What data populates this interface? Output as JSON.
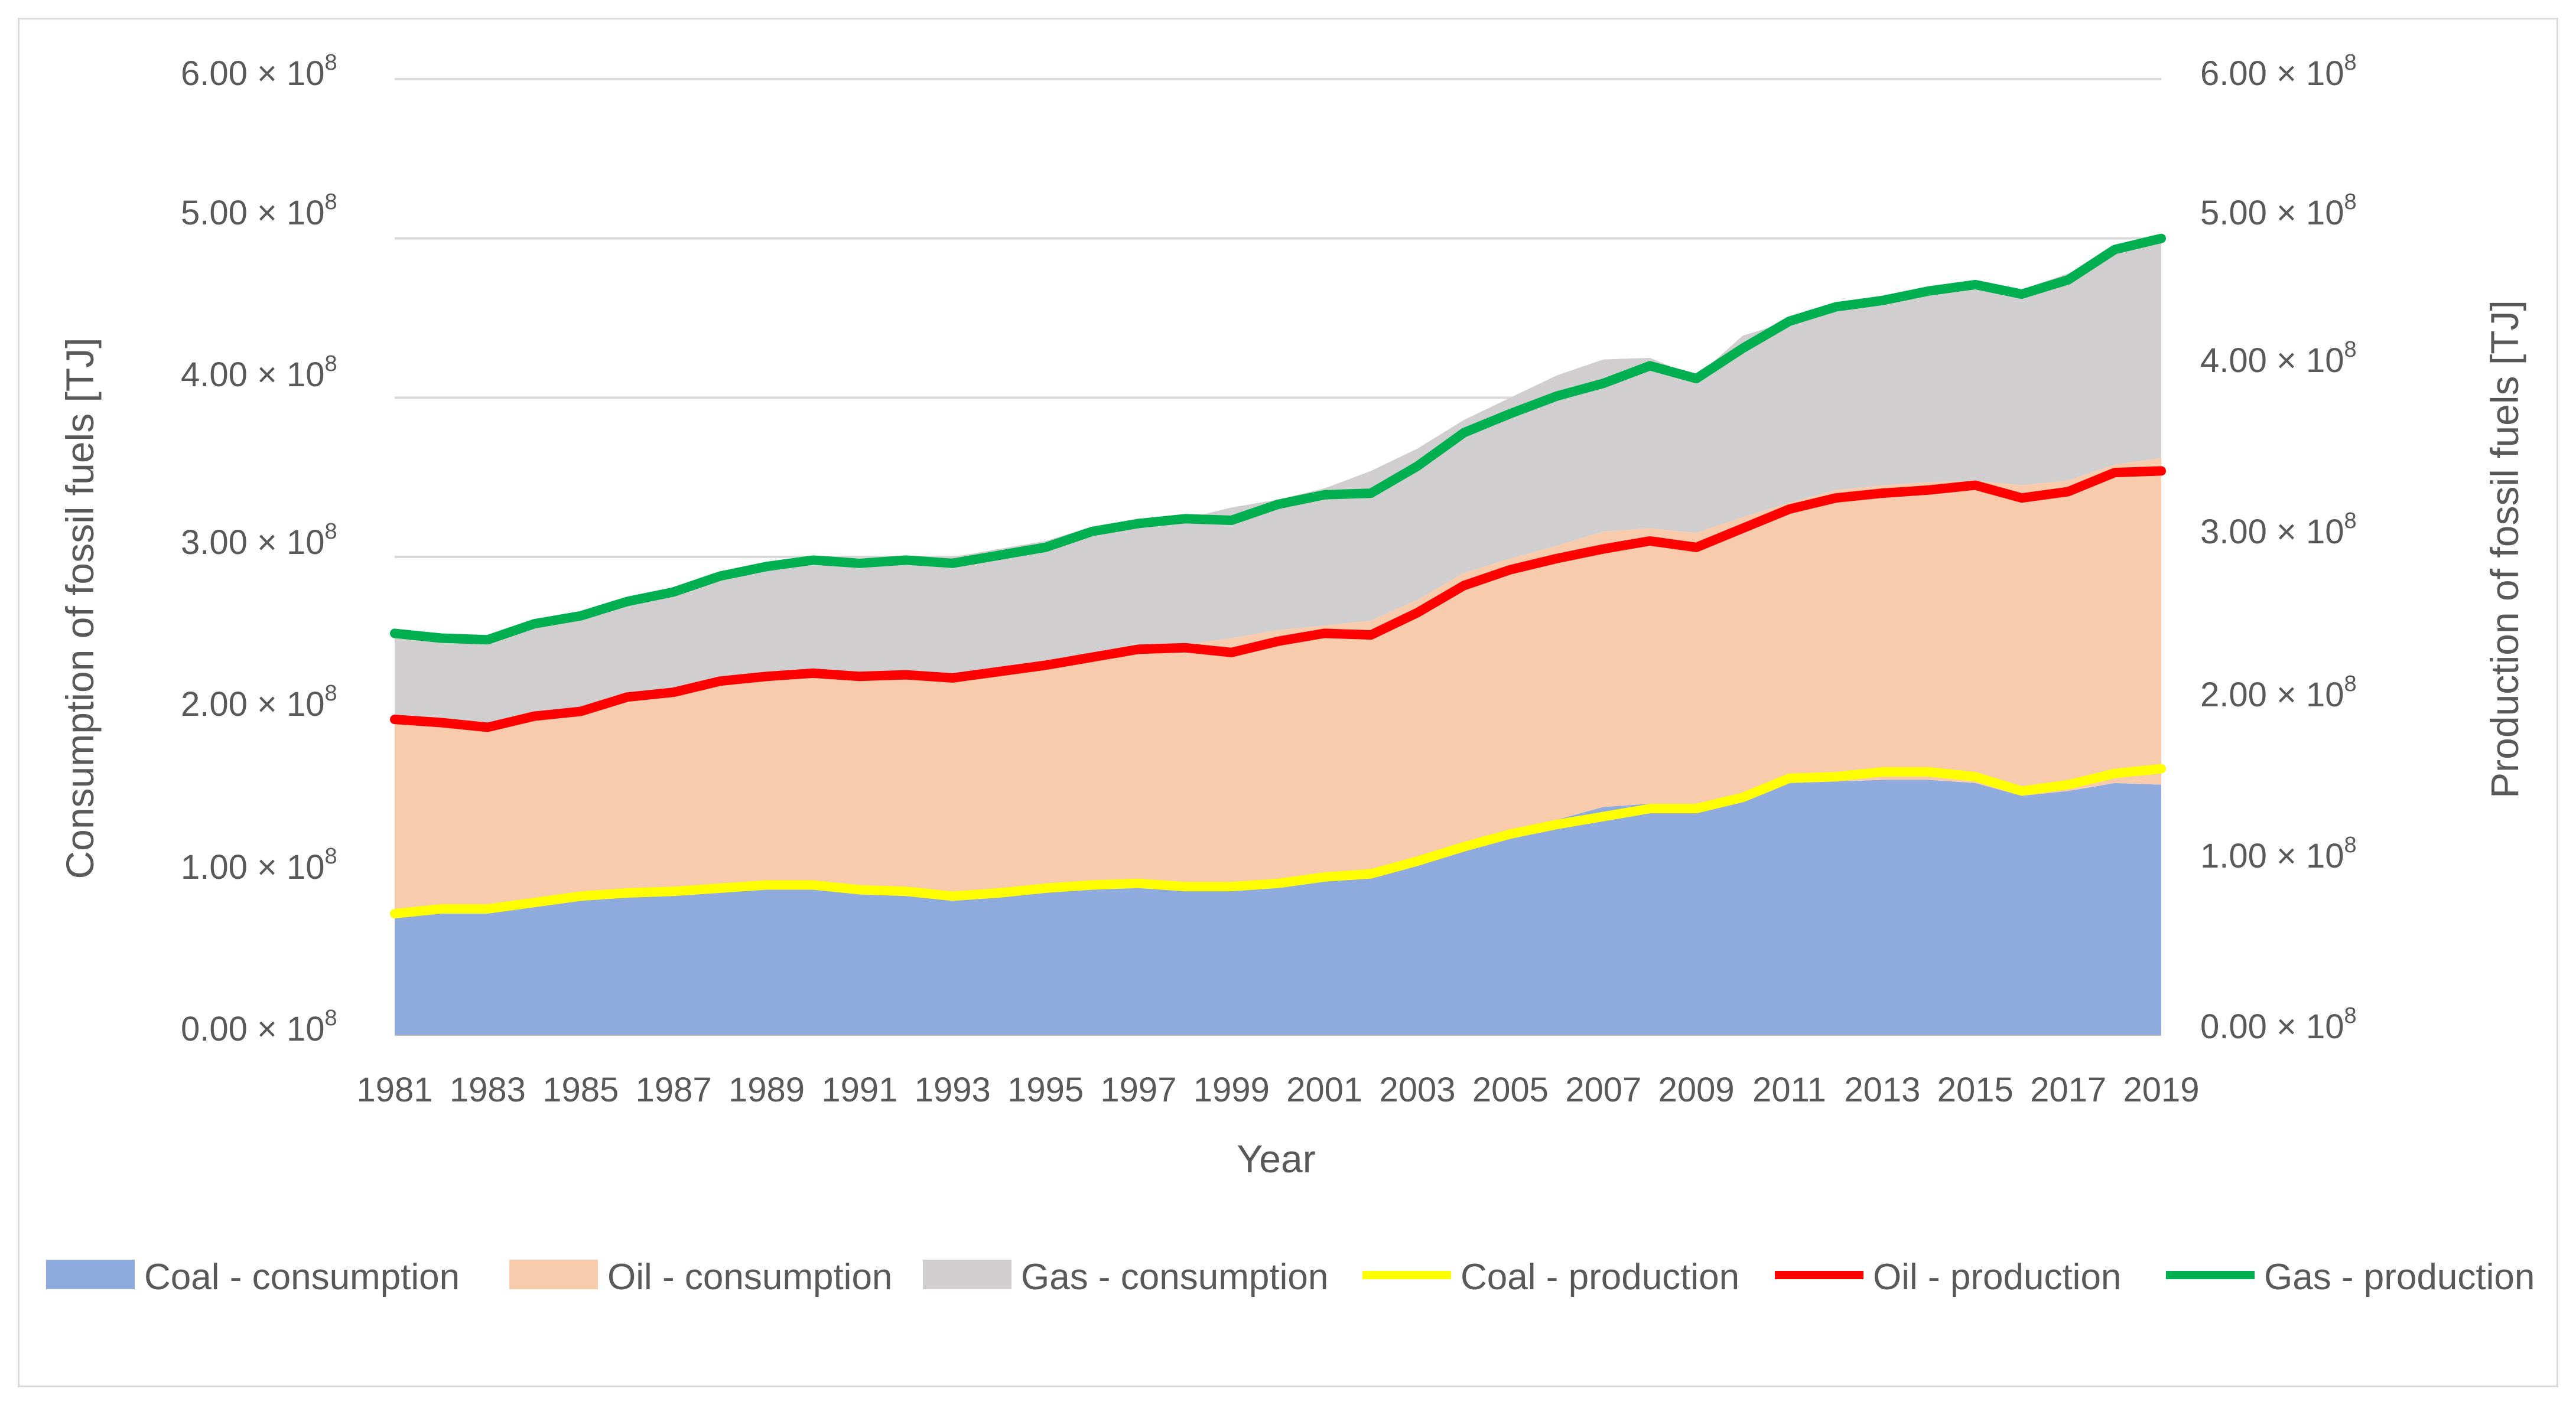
{
  "chart_data": {
    "type": "area",
    "title": "",
    "xlabel": "Year",
    "ylabel_left": "Consumption of fossil fuels [TJ]",
    "ylabel_right": "Production of fossil fuels [TJ]",
    "ylim": [
      0,
      600000000
    ],
    "y_ticks": [
      {
        "mantissa": "0.00",
        "exp": "8"
      },
      {
        "mantissa": "1.00",
        "exp": "8"
      },
      {
        "mantissa": "2.00",
        "exp": "8"
      },
      {
        "mantissa": "3.00",
        "exp": "8"
      },
      {
        "mantissa": "4.00",
        "exp": "8"
      },
      {
        "mantissa": "5.00",
        "exp": "8"
      },
      {
        "mantissa": "6.00",
        "exp": "8"
      }
    ],
    "x_tick_labels": [
      "1981",
      "1983",
      "1985",
      "1987",
      "1989",
      "1991",
      "1993",
      "1995",
      "1997",
      "1999",
      "2001",
      "2003",
      "2005",
      "2007",
      "2009",
      "2011",
      "2013",
      "2015",
      "2017",
      "2019"
    ],
    "x": [
      1981,
      1982,
      1983,
      1984,
      1985,
      1986,
      1987,
      1988,
      1989,
      1990,
      1991,
      1992,
      1993,
      1994,
      1995,
      1996,
      1997,
      1998,
      1999,
      2000,
      2001,
      2002,
      2003,
      2004,
      2005,
      2006,
      2007,
      2008,
      2009,
      2010,
      2011,
      2012,
      2013,
      2014,
      2015,
      2016,
      2017,
      2018,
      2019
    ],
    "grid": true,
    "legend_position": "bottom",
    "stacked_areas": [
      {
        "name": "Coal - consumption",
        "color": "#8faadc",
        "values": [
          75000000,
          78000000,
          78000000,
          82000000,
          86000000,
          88000000,
          89000000,
          91000000,
          93000000,
          93000000,
          90000000,
          89000000,
          86000000,
          88000000,
          91000000,
          93000000,
          94000000,
          92000000,
          92000000,
          94000000,
          98000000,
          100000000,
          108000000,
          118000000,
          127000000,
          135000000,
          143000000,
          145000000,
          140000000,
          147000000,
          158000000,
          159000000,
          160000000,
          160000000,
          158000000,
          150000000,
          153000000,
          158000000,
          157000000
        ]
      },
      {
        "name": "Oil - consumption",
        "color": "#f8cbad",
        "values": [
          122000000,
          118000000,
          117000000,
          121000000,
          119000000,
          124000000,
          125000000,
          131000000,
          133000000,
          135000000,
          135000000,
          138000000,
          140000000,
          140000000,
          141000000,
          145000000,
          150000000,
          153000000,
          157000000,
          160000000,
          159000000,
          160000000,
          165000000,
          172000000,
          172000000,
          172000000,
          173000000,
          173000000,
          175000000,
          178000000,
          176000000,
          183000000,
          185000000,
          187000000,
          190000000,
          195000000,
          195000000,
          200000000,
          205000000
        ]
      },
      {
        "name": "Gas - consumption",
        "color": "#d0cece",
        "values": [
          55000000,
          55000000,
          55000000,
          58000000,
          60000000,
          62000000,
          65000000,
          67000000,
          68000000,
          70000000,
          71000000,
          71000000,
          74000000,
          77000000,
          78000000,
          81000000,
          78000000,
          79000000,
          82000000,
          82000000,
          86000000,
          94000000,
          95000000,
          96000000,
          101000000,
          107000000,
          108000000,
          107000000,
          98000000,
          114000000,
          114000000,
          114000000,
          113000000,
          121000000,
          124000000,
          123000000,
          130000000,
          133000000,
          139000000
        ]
      }
    ],
    "lines": [
      {
        "name": "Coal - production",
        "color": "#ffff00",
        "values": [
          76000000,
          79000000,
          79000000,
          83000000,
          87000000,
          89000000,
          90000000,
          92000000,
          94000000,
          94000000,
          91000000,
          90000000,
          87000000,
          89000000,
          92000000,
          94000000,
          95000000,
          93000000,
          93000000,
          95000000,
          99000000,
          101000000,
          109000000,
          118000000,
          126000000,
          132000000,
          137000000,
          142000000,
          142000000,
          149000000,
          161000000,
          162000000,
          165000000,
          165000000,
          162000000,
          153000000,
          157000000,
          164000000,
          167000000
        ]
      },
      {
        "name": "Oil - production",
        "color": "#ff0000",
        "values": [
          198000000,
          196000000,
          193000000,
          200000000,
          203000000,
          212000000,
          215000000,
          222000000,
          225000000,
          227000000,
          225000000,
          226000000,
          224000000,
          228000000,
          232000000,
          237000000,
          242000000,
          243000000,
          240000000,
          247000000,
          252000000,
          251000000,
          265000000,
          282000000,
          292000000,
          299000000,
          305000000,
          310000000,
          306000000,
          318000000,
          330000000,
          337000000,
          340000000,
          342000000,
          345000000,
          337000000,
          341000000,
          353000000,
          354000000
        ]
      },
      {
        "name": "Gas - production",
        "color": "#00b050",
        "values": [
          252000000,
          249000000,
          248000000,
          258000000,
          263000000,
          272000000,
          278000000,
          288000000,
          294000000,
          298000000,
          296000000,
          298000000,
          296000000,
          301000000,
          306000000,
          316000000,
          321000000,
          324000000,
          323000000,
          333000000,
          339000000,
          340000000,
          357000000,
          378000000,
          390000000,
          401000000,
          409000000,
          420000000,
          412000000,
          431000000,
          448000000,
          457000000,
          461000000,
          467000000,
          471000000,
          465000000,
          474000000,
          493000000,
          500000000
        ]
      }
    ]
  }
}
